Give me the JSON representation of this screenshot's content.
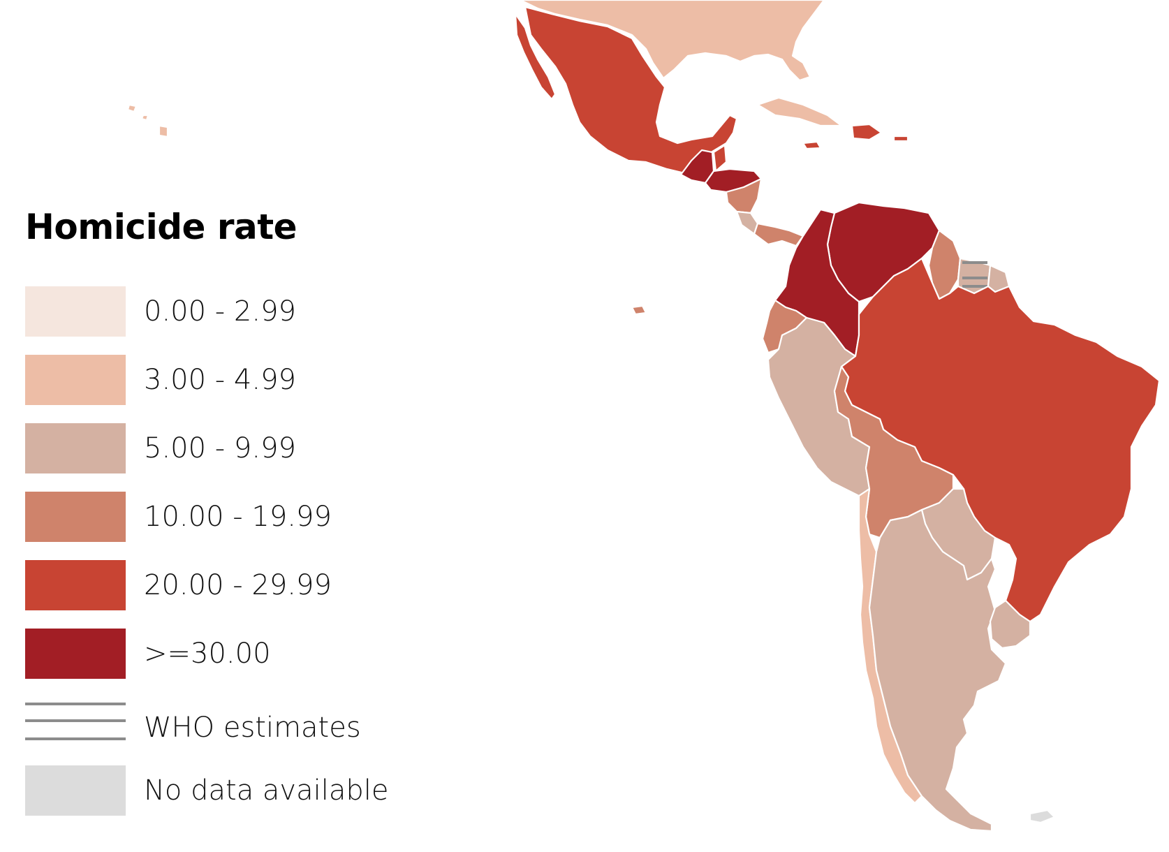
{
  "legend": {
    "title": "Homicide rate",
    "items": [
      {
        "label": "0.00 - 2.99",
        "color": "#f5e6de"
      },
      {
        "label": "3.00 - 4.99",
        "color": "#edbda6"
      },
      {
        "label": "5.00 - 9.99",
        "color": "#d4b1a2"
      },
      {
        "label": "10.00 - 19.99",
        "color": "#cf836b"
      },
      {
        "label": "20.00 - 29.99",
        "color": "#c84433"
      },
      {
        "label": ">=30.00",
        "color": "#a21e25"
      }
    ],
    "who_label": "WHO estimates",
    "who_line_color": "#8c8c8c",
    "nodata_label": "No data available",
    "nodata_color": "#dcdcdc"
  }
}
